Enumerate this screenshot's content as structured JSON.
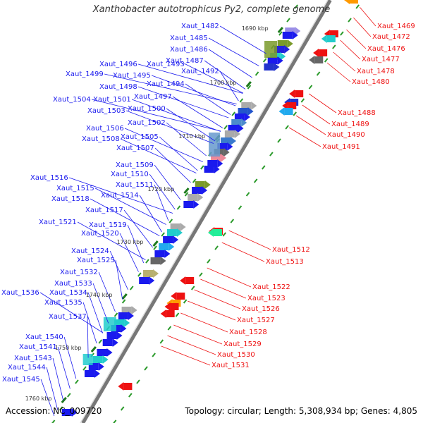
{
  "title": "Xanthobacter autotrophicus Py2, complete genome",
  "accession_label": "Accession: NC_009720",
  "topology_label": "Topology: circular; Length: 5,308,934 bp; Genes: 4,805",
  "colors": {
    "plus_label": "#1a1aee",
    "minus_label": "#ee1111",
    "backbone": "#777777"
  },
  "kbp_labels": [
    "1690 kbp",
    "1700 kbp",
    "1710 kbp",
    "1720 kbp",
    "1730 kbp",
    "1740 kbp",
    "1750 kbp",
    "1760 kbp"
  ],
  "left_labels": [
    "Xaut_1482",
    "Xaut_1485",
    "Xaut_1486",
    "Xaut_1487",
    "Xaut_1493",
    "Xaut_1496",
    "Xaut_1492",
    "Xaut_1499",
    "Xaut_1495",
    "Xaut_1494",
    "Xaut_1498",
    "Xaut_1497",
    "Xaut_1504",
    "Xaut_1501",
    "Xaut_1500",
    "Xaut_1503",
    "Xaut_1502",
    "Xaut_1506",
    "Xaut_1505",
    "Xaut_1508",
    "Xaut_1507",
    "Xaut_1509",
    "Xaut_1510",
    "Xaut_1516",
    "Xaut_1511",
    "Xaut_1515",
    "Xaut_1514",
    "Xaut_1518",
    "Xaut_1517",
    "Xaut_1521",
    "Xaut_1519",
    "Xaut_1520",
    "Xaut_1524",
    "Xaut_1525",
    "Xaut_1532",
    "Xaut_1533",
    "Xaut_1536",
    "Xaut_1534",
    "Xaut_1535",
    "Xaut_1537",
    "Xaut_1540",
    "Xaut_1541",
    "Xaut_1543",
    "Xaut_1544",
    "Xaut_1545"
  ],
  "right_labels": [
    "Xaut_1469",
    "Xaut_1472",
    "Xaut_1476",
    "Xaut_1477",
    "Xaut_1478",
    "Xaut_1480",
    "Xaut_1488",
    "Xaut_1489",
    "Xaut_1490",
    "Xaut_1491",
    "Xaut_1512",
    "Xaut_1513",
    "Xaut_1522",
    "Xaut_1523",
    "Xaut_1526",
    "Xaut_1527",
    "Xaut_1528",
    "Xaut_1529",
    "Xaut_1530",
    "Xaut_1531"
  ]
}
